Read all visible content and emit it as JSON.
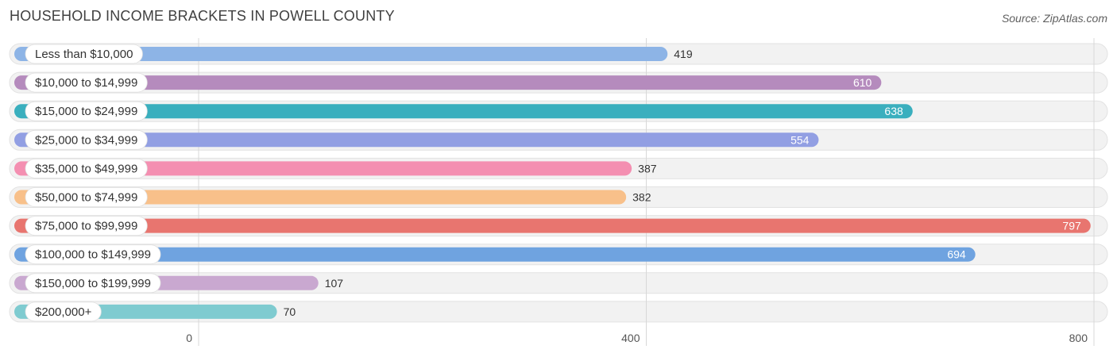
{
  "header": {
    "title": "HOUSEHOLD INCOME BRACKETS IN POWELL COUNTY",
    "source": "Source: ZipAtlas.com"
  },
  "chart_data": {
    "type": "bar",
    "orientation": "horizontal",
    "title": "HOUSEHOLD INCOME BRACKETS IN POWELL COUNTY",
    "xlabel": "",
    "ylabel": "",
    "xlim": [
      0,
      800
    ],
    "ticks": [
      0,
      400,
      800
    ],
    "tick_labels": [
      "0",
      "400",
      "800"
    ],
    "grid": true,
    "categories": [
      "Less than $10,000",
      "$10,000 to $14,999",
      "$15,000 to $24,999",
      "$25,000 to $34,999",
      "$35,000 to $49,999",
      "$50,000 to $74,999",
      "$75,000 to $99,999",
      "$100,000 to $149,999",
      "$150,000 to $199,999",
      "$200,000+"
    ],
    "values": [
      419,
      610,
      638,
      554,
      387,
      382,
      797,
      694,
      107,
      70
    ],
    "colors": [
      "#8db4e6",
      "#b58bbd",
      "#3aafbe",
      "#929fe3",
      "#f48fb1",
      "#f8c08a",
      "#e8756f",
      "#6fa3e0",
      "#c9a8d0",
      "#7fcbd0"
    ]
  }
}
